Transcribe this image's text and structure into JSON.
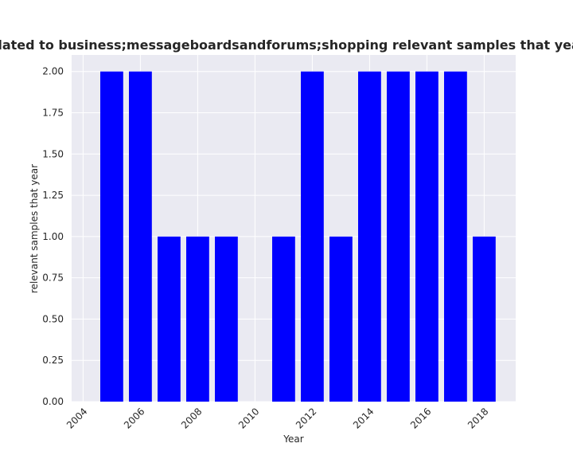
{
  "chart_data": {
    "type": "bar",
    "title": "Number of samples that are related to business;messageboardsandforums;shopping relevant samples that year in private-messaging category",
    "xlabel": "Year",
    "ylabel": "relevant samples that year",
    "x": [
      2005,
      2006,
      2007,
      2008,
      2009,
      2010,
      2011,
      2012,
      2013,
      2014,
      2015,
      2016,
      2017,
      2018
    ],
    "values": [
      2,
      2,
      1,
      1,
      1,
      0,
      1,
      2,
      1,
      2,
      2,
      2,
      2,
      1
    ],
    "xlim": [
      2003.6,
      2019.1
    ],
    "ylim": [
      0,
      2.1
    ],
    "xticks": [
      "2004",
      "2006",
      "2008",
      "2010",
      "2012",
      "2014",
      "2016",
      "2018"
    ],
    "yticks": [
      "0.00",
      "0.25",
      "0.50",
      "0.75",
      "1.00",
      "1.25",
      "1.50",
      "1.75",
      "2.00"
    ],
    "bar_color": "#0000ff",
    "background_color": "#eaeaf2",
    "grid": true
  }
}
